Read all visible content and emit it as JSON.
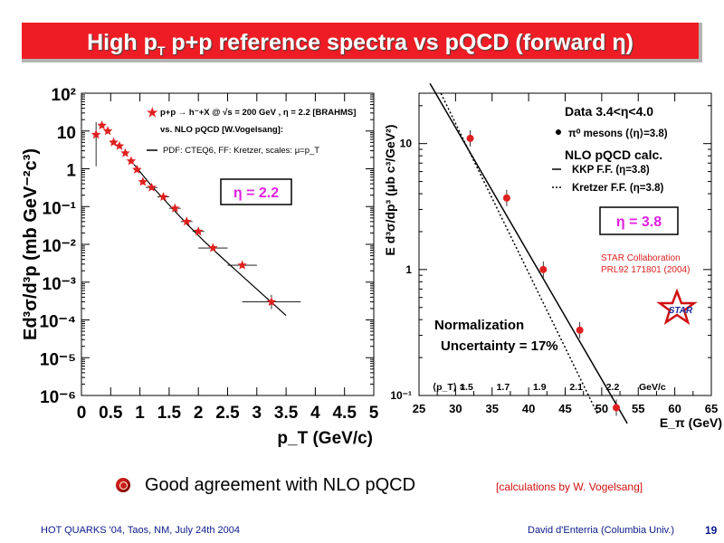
{
  "slide": {
    "title": "High p",
    "title_sub": "T",
    "title_rest": " p+p reference spectra vs pQCD (forward η)",
    "bullet_text": "Good agreement with NLO pQCD",
    "credit": "[calculations by W. Vogelsang]",
    "footer_left": "HOT QUARKS '04, Taos, NM, July 24th 2004",
    "footer_right": "David d'Enterria (Columbia Univ.)",
    "page_number": "19",
    "colors": {
      "title_bg": "#ee1c24",
      "data_red": "#e02020",
      "footer_blue": "#0a1a8a",
      "eta_magenta": "#e020e0"
    }
  },
  "chart_data": [
    {
      "type": "scatter",
      "xlabel": "p_T (GeV/c)",
      "ylabel": "Ed³σ/d³p (mb GeV⁻²c³)",
      "xlim": [
        0,
        5
      ],
      "ylim_log10": [
        -6,
        2
      ],
      "log_y": true,
      "xticks": [
        "0",
        "0.5",
        "1",
        "1.5",
        "2",
        "2.5",
        "3",
        "3.5",
        "4",
        "4.5",
        "5"
      ],
      "yticks": [
        "10²",
        "10",
        "1",
        "10⁻¹",
        "10⁻²",
        "10⁻³",
        "10⁻⁴",
        "10⁻⁵",
        "10⁻⁶"
      ],
      "legend": {
        "entry1": "p+p → h⁻+X @ √s = 200 GeV , η = 2.2 [BRAHMS]",
        "entry2": "vs. NLO pQCD [W.Vogelsang]:",
        "entry3": "PDF: CTEQ6, FF: Kretzer, scales: μ=p_T"
      },
      "annotation": "η = 2.2",
      "series": [
        {
          "name": "p+p → h⁻+X @ √s = 200 GeV , η = 2.2 [BRAHMS]",
          "x": [
            0.25,
            0.35,
            0.45,
            0.55,
            0.65,
            0.75,
            0.85,
            0.95,
            1.05,
            1.2,
            1.4,
            1.6,
            1.8,
            2.0,
            2.25,
            2.75,
            3.25
          ],
          "y": [
            8,
            14,
            10,
            5,
            4,
            2.6,
            1.6,
            0.95,
            0.45,
            0.32,
            0.18,
            0.09,
            0.04,
            0.022,
            0.008,
            0.0028,
            0.0003
          ],
          "xerr": [
            0.05,
            0.05,
            0.05,
            0.05,
            0.05,
            0.05,
            0.05,
            0.05,
            0.05,
            0.1,
            0.1,
            0.1,
            0.1,
            0.1,
            0.25,
            0.25,
            0.5
          ]
        },
        {
          "name": "PDF: CTEQ6, FF: Kretzer, scales: μ=p_T",
          "type": "line",
          "x": [
            0.9,
            1.2,
            1.5,
            1.8,
            2.1,
            2.4,
            2.7,
            3.0,
            3.3,
            3.5
          ],
          "y": [
            1.3,
            0.35,
            0.11,
            0.035,
            0.012,
            0.0045,
            0.0017,
            0.00065,
            0.00025,
            0.00013
          ]
        }
      ]
    },
    {
      "type": "scatter",
      "xlabel": "E_π (GeV)",
      "ylabel": "E d³σ/dp³ (μb c³/GeV²)",
      "xlim": [
        25,
        65
      ],
      "ylim_log10": [
        -1,
        1.4
      ],
      "log_y": true,
      "xticks": [
        "25",
        "30",
        "35",
        "40",
        "45",
        "50",
        "55",
        "60",
        "65"
      ],
      "yticks": [
        "10",
        "1",
        "10⁻¹"
      ],
      "legend": {
        "header": "Data 3.4<η<4.0",
        "data_entry": "π⁰ mesons (⟨η⟩=3.8)",
        "calc_header": "NLO pQCD calc.",
        "kkp": "KKP F.F. (η=3.8)",
        "kretzer": "Kretzer F.F. (η=3.8)"
      },
      "annotation": "η =  3.8",
      "collab": "STAR Collaboration",
      "ref": "PRL92 171801 (2004)",
      "logo": "STAR",
      "norm_label1": "Normalization",
      "norm_label2": "Uncertainty = 17%",
      "pt_label": "⟨p_T⟩ =",
      "pt_values": [
        "1.5",
        "1.7",
        "1.9",
        "2.1",
        "2.2"
      ],
      "pt_unit": "GeV/c",
      "series": [
        {
          "name": "π⁰ mesons (⟨η⟩=3.8)",
          "x": [
            32,
            37,
            42,
            47,
            52
          ],
          "y": [
            11,
            3.7,
            1.0,
            0.33,
            0.08
          ]
        },
        {
          "name": "KKP F.F. (η=3.8)",
          "type": "line",
          "x": [
            26.5,
            53.5
          ],
          "y": [
            30,
            0.06
          ]
        },
        {
          "name": "Kretzer F.F. (η=3.8)",
          "type": "line",
          "x": [
            28,
            49.5
          ],
          "y": [
            25,
            0.07
          ]
        }
      ]
    }
  ]
}
